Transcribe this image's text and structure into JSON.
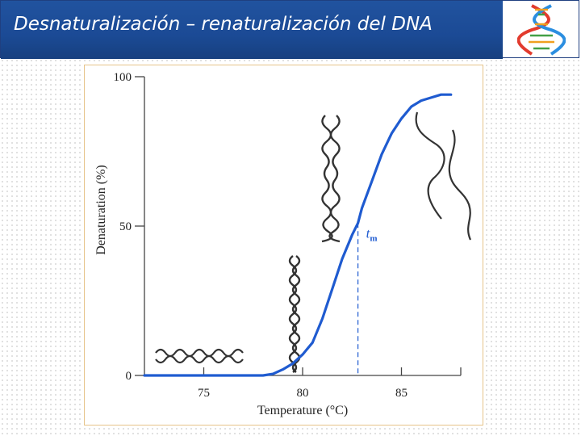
{
  "slide": {
    "title": "Desnaturalización – renaturalización del DNA",
    "logo_icon": "dna-helix-icon"
  },
  "colors": {
    "title_band": "#1b4a95",
    "curve": "#1f5bd0",
    "tm_line": "#1f5bd0",
    "figure_border": "#e6c48a"
  },
  "chart_data": {
    "type": "line",
    "xlabel": "Temperature (°C)",
    "ylabel": "Denaturation (%)",
    "xlim": [
      72,
      88
    ],
    "ylim": [
      0,
      100
    ],
    "x_ticks": [
      75,
      80,
      85
    ],
    "y_ticks": [
      0,
      50,
      100
    ],
    "grid": false,
    "series": [
      {
        "x": [
          72,
          74,
          76,
          78,
          78.5,
          79,
          79.5,
          80,
          80.5,
          81,
          81.5,
          82,
          82.5,
          82.8,
          83,
          83.5,
          84,
          84.5,
          85,
          85.5,
          86,
          86.5,
          87,
          87.5
        ],
        "y": [
          0,
          0,
          0,
          0,
          0.5,
          2,
          4,
          7,
          11,
          19,
          29,
          39,
          47,
          51,
          56,
          65,
          74,
          81,
          86,
          90,
          92,
          93,
          94,
          94
        ]
      }
    ],
    "annotations": [
      {
        "label": "t",
        "subscript": "m",
        "x": 82.8,
        "y": 51
      }
    ]
  }
}
